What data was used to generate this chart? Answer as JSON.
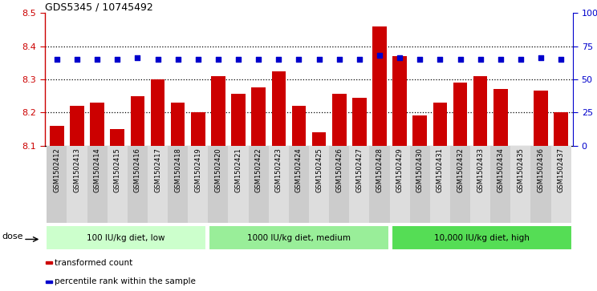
{
  "title": "GDS5345 / 10745492",
  "samples": [
    "GSM1502412",
    "GSM1502413",
    "GSM1502414",
    "GSM1502415",
    "GSM1502416",
    "GSM1502417",
    "GSM1502418",
    "GSM1502419",
    "GSM1502420",
    "GSM1502421",
    "GSM1502422",
    "GSM1502423",
    "GSM1502424",
    "GSM1502425",
    "GSM1502426",
    "GSM1502427",
    "GSM1502428",
    "GSM1502429",
    "GSM1502430",
    "GSM1502431",
    "GSM1502432",
    "GSM1502433",
    "GSM1502434",
    "GSM1502435",
    "GSM1502436",
    "GSM1502437"
  ],
  "bar_values": [
    8.16,
    8.22,
    8.23,
    8.15,
    8.25,
    8.3,
    8.23,
    8.2,
    8.31,
    8.255,
    8.275,
    8.325,
    8.22,
    8.14,
    8.255,
    8.245,
    8.46,
    8.37,
    8.19,
    8.23,
    8.29,
    8.31,
    8.27,
    8.1,
    8.265,
    8.2
  ],
  "percentile_values": [
    65,
    65,
    65,
    65,
    66,
    65,
    65,
    65,
    65,
    65,
    65,
    65,
    65,
    65,
    65,
    65,
    68,
    66,
    65,
    65,
    65,
    65,
    65,
    65,
    66,
    65
  ],
  "ylim_left": [
    8.1,
    8.5
  ],
  "ylim_right": [
    0,
    100
  ],
  "bar_color": "#cc0000",
  "dot_color": "#0000cc",
  "axis_left_color": "#cc0000",
  "axis_right_color": "#0000cc",
  "groups": [
    {
      "label": "100 IU/kg diet, low",
      "start": 0,
      "end": 8,
      "color": "#ccffcc"
    },
    {
      "label": "1000 IU/kg diet, medium",
      "start": 8,
      "end": 17,
      "color": "#99ee99"
    },
    {
      "label": "10,000 IU/kg diet, high",
      "start": 17,
      "end": 26,
      "color": "#55dd55"
    }
  ],
  "dose_label": "dose",
  "legend_items": [
    {
      "label": "transformed count",
      "color": "#cc0000"
    },
    {
      "label": "percentile rank within the sample",
      "color": "#0000cc"
    }
  ],
  "right_yticks": [
    0,
    25,
    50,
    75,
    100
  ],
  "right_yticklabels": [
    "0",
    "25",
    "50",
    "75",
    "100%"
  ],
  "left_yticks": [
    8.1,
    8.2,
    8.3,
    8.4,
    8.5
  ],
  "grid_yticks": [
    8.2,
    8.3,
    8.4
  ]
}
